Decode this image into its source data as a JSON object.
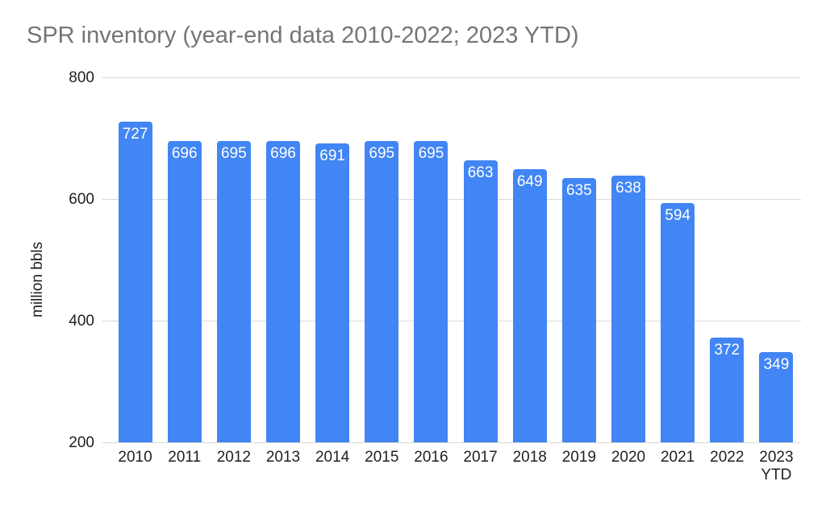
{
  "chart_data": {
    "type": "bar",
    "title": "SPR inventory (year-end data 2010-2022; 2023 YTD)",
    "xlabel": "",
    "ylabel": "million bbls",
    "categories": [
      "2010",
      "2011",
      "2012",
      "2013",
      "2014",
      "2015",
      "2016",
      "2017",
      "2018",
      "2019",
      "2020",
      "2021",
      "2022",
      "2023 YTD"
    ],
    "values": [
      727,
      696,
      695,
      696,
      691,
      695,
      695,
      663,
      649,
      635,
      638,
      594,
      372,
      349
    ],
    "ylim": [
      200,
      800
    ],
    "yticks": [
      200,
      400,
      600,
      800
    ],
    "grid": true,
    "legend_position": "none",
    "data_labels": "inside-top",
    "colors": {
      "bar": "#4285F4",
      "bar_label": "#FFFFFF",
      "gridline": "#D9D9D9",
      "title": "#757575",
      "axis_text": "#1F1F1F"
    }
  }
}
